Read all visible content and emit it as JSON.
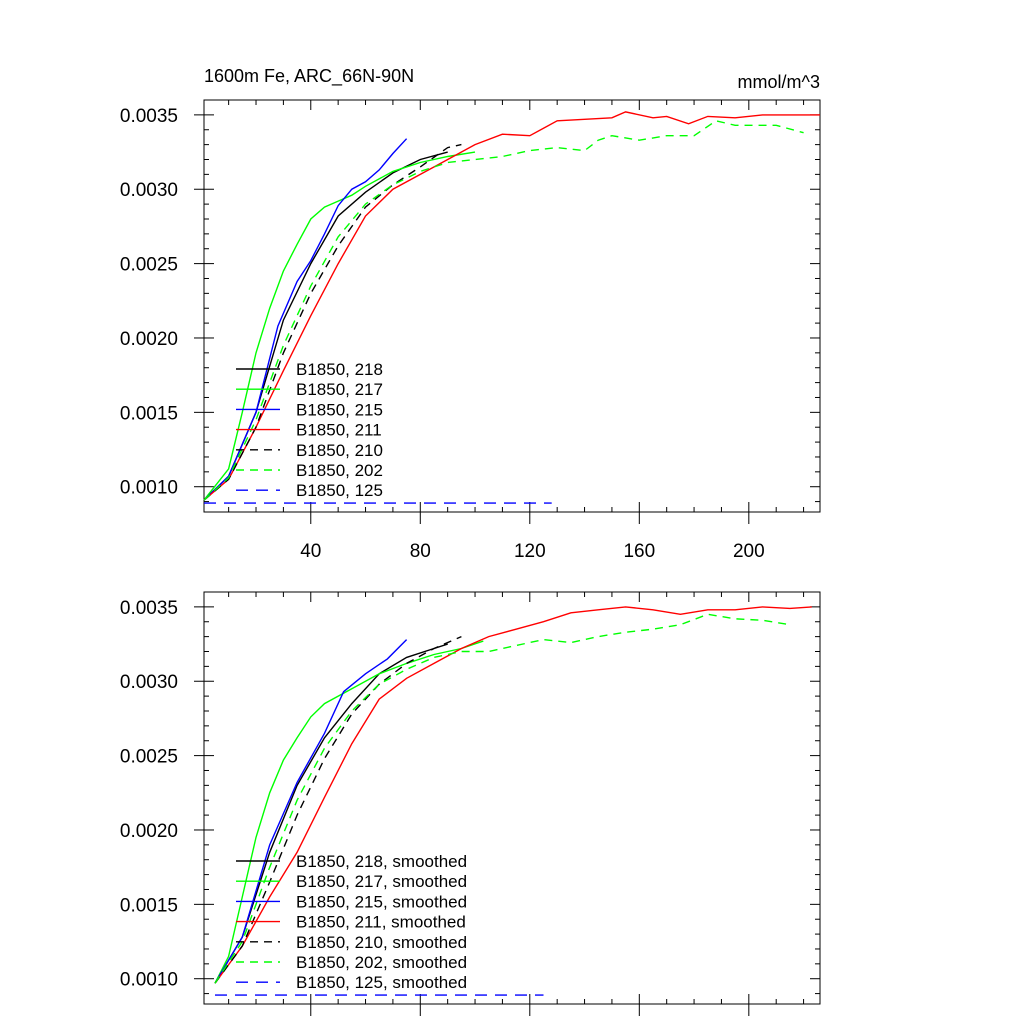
{
  "figure": {
    "title_left": "1600m Fe, ARC_66N-90N",
    "title_right": "mmol/m^3"
  },
  "chart_data": [
    {
      "type": "line",
      "xlim": [
        1,
        226
      ],
      "ylim": [
        0.00083,
        0.0036
      ],
      "x_ticks": [
        40,
        80,
        120,
        160,
        200
      ],
      "x_tick_labels": [
        "40",
        "80",
        "120",
        "160",
        "200"
      ],
      "y_ticks": [
        0.001,
        0.0015,
        0.002,
        0.0025,
        0.003,
        0.0035
      ],
      "y_tick_labels": [
        "0.0010",
        "0.0015",
        "0.0020",
        "0.0025",
        "0.0030",
        "0.0035"
      ],
      "grid": false,
      "legend_position": "lower-left",
      "series": [
        {
          "name": "B1850, 218",
          "color": "#000000",
          "dash": "solid",
          "points": [
            [
              1,
              0.00091
            ],
            [
              10,
              0.00107
            ],
            [
              20,
              0.0015
            ],
            [
              30,
              0.00212
            ],
            [
              40,
              0.0025
            ],
            [
              50,
              0.00282
            ],
            [
              60,
              0.00298
            ],
            [
              70,
              0.00311
            ],
            [
              80,
              0.0032
            ],
            [
              90,
              0.00325
            ]
          ]
        },
        {
          "name": "B1850, 217",
          "color": "#00ff00",
          "dash": "solid",
          "points": [
            [
              1,
              0.00091
            ],
            [
              10,
              0.00112
            ],
            [
              15,
              0.0015
            ],
            [
              20,
              0.0019
            ],
            [
              25,
              0.0022
            ],
            [
              30,
              0.00245
            ],
            [
              35,
              0.00263
            ],
            [
              40,
              0.0028
            ],
            [
              45,
              0.00288
            ],
            [
              50,
              0.00292
            ],
            [
              55,
              0.00296
            ],
            [
              60,
              0.00302
            ],
            [
              70,
              0.00312
            ],
            [
              80,
              0.00318
            ],
            [
              90,
              0.00322
            ],
            [
              100,
              0.00325
            ]
          ]
        },
        {
          "name": "B1850, 215",
          "color": "#0000ff",
          "dash": "solid",
          "points": [
            [
              1,
              0.00091
            ],
            [
              10,
              0.00107
            ],
            [
              20,
              0.0015
            ],
            [
              28,
              0.00208
            ],
            [
              35,
              0.00238
            ],
            [
              40,
              0.00252
            ],
            [
              45,
              0.0027
            ],
            [
              50,
              0.00289
            ],
            [
              55,
              0.003
            ],
            [
              60,
              0.00305
            ],
            [
              65,
              0.00313
            ],
            [
              70,
              0.00324
            ],
            [
              75,
              0.00334
            ]
          ]
        },
        {
          "name": "B1850, 211",
          "color": "#ff0000",
          "dash": "solid",
          "points": [
            [
              1,
              0.00091
            ],
            [
              10,
              0.00105
            ],
            [
              20,
              0.0014
            ],
            [
              30,
              0.00178
            ],
            [
              40,
              0.00215
            ],
            [
              50,
              0.0025
            ],
            [
              60,
              0.00282
            ],
            [
              70,
              0.003
            ],
            [
              80,
              0.0031
            ],
            [
              90,
              0.0032
            ],
            [
              100,
              0.0033
            ],
            [
              110,
              0.00337
            ],
            [
              120,
              0.00336
            ],
            [
              130,
              0.00346
            ],
            [
              140,
              0.00347
            ],
            [
              150,
              0.00348
            ],
            [
              155,
              0.00352
            ],
            [
              165,
              0.00348
            ],
            [
              170,
              0.00349
            ],
            [
              178,
              0.00344
            ],
            [
              185,
              0.00349
            ],
            [
              195,
              0.00348
            ],
            [
              205,
              0.0035
            ],
            [
              215,
              0.0035
            ],
            [
              226,
              0.0035
            ]
          ]
        },
        {
          "name": "B1850, 210",
          "color": "#000000",
          "dash": "dashed",
          "points": [
            [
              1,
              0.00091
            ],
            [
              10,
              0.00105
            ],
            [
              20,
              0.0014
            ],
            [
              30,
              0.0019
            ],
            [
              40,
              0.0023
            ],
            [
              50,
              0.00262
            ],
            [
              60,
              0.00288
            ],
            [
              70,
              0.00303
            ],
            [
              80,
              0.00315
            ],
            [
              90,
              0.00328
            ],
            [
              95,
              0.0033
            ]
          ]
        },
        {
          "name": "B1850, 202",
          "color": "#00ff00",
          "dash": "dashed",
          "points": [
            [
              1,
              0.00091
            ],
            [
              10,
              0.00106
            ],
            [
              20,
              0.00145
            ],
            [
              30,
              0.00195
            ],
            [
              40,
              0.00235
            ],
            [
              50,
              0.00268
            ],
            [
              60,
              0.0029
            ],
            [
              70,
              0.00303
            ],
            [
              80,
              0.00312
            ],
            [
              90,
              0.00318
            ],
            [
              100,
              0.0032
            ],
            [
              110,
              0.00322
            ],
            [
              120,
              0.00326
            ],
            [
              130,
              0.00328
            ],
            [
              140,
              0.00326
            ],
            [
              145,
              0.00333
            ],
            [
              150,
              0.00336
            ],
            [
              160,
              0.00333
            ],
            [
              170,
              0.00336
            ],
            [
              180,
              0.00336
            ],
            [
              188,
              0.00346
            ],
            [
              195,
              0.00343
            ],
            [
              210,
              0.00343
            ],
            [
              220,
              0.00338
            ]
          ]
        },
        {
          "name": "B1850, 125",
          "color": "#0000ff",
          "dash": "longdash",
          "points": [
            [
              1,
              0.00089
            ],
            [
              128,
              0.00089
            ]
          ]
        }
      ]
    },
    {
      "type": "line",
      "xlim": [
        1,
        226
      ],
      "ylim": [
        0.00083,
        0.0036
      ],
      "x_ticks": [
        40,
        80,
        120,
        160,
        200
      ],
      "x_tick_labels": [],
      "y_ticks": [
        0.001,
        0.0015,
        0.002,
        0.0025,
        0.003,
        0.0035
      ],
      "y_tick_labels": [
        "0.0010",
        "0.0015",
        "0.0020",
        "0.0025",
        "0.0030",
        "0.0035"
      ],
      "grid": false,
      "legend_position": "lower-left",
      "series": [
        {
          "name": "B1850, 218, smoothed",
          "color": "#000000",
          "dash": "solid",
          "points": [
            [
              5,
              0.00097
            ],
            [
              15,
              0.00128
            ],
            [
              25,
              0.00185
            ],
            [
              35,
              0.0023
            ],
            [
              45,
              0.00262
            ],
            [
              55,
              0.00285
            ],
            [
              65,
              0.00305
            ],
            [
              75,
              0.00316
            ],
            [
              85,
              0.00322
            ],
            [
              90,
              0.00325
            ]
          ]
        },
        {
          "name": "B1850, 217, smoothed",
          "color": "#00ff00",
          "dash": "solid",
          "points": [
            [
              5,
              0.00097
            ],
            [
              10,
              0.00115
            ],
            [
              15,
              0.00155
            ],
            [
              20,
              0.00195
            ],
            [
              25,
              0.00225
            ],
            [
              30,
              0.00247
            ],
            [
              35,
              0.00262
            ],
            [
              40,
              0.00276
            ],
            [
              45,
              0.00285
            ],
            [
              55,
              0.00295
            ],
            [
              65,
              0.00305
            ],
            [
              75,
              0.00312
            ],
            [
              85,
              0.00318
            ],
            [
              95,
              0.00322
            ],
            [
              103,
              0.00327
            ]
          ]
        },
        {
          "name": "B1850, 215, smoothed",
          "color": "#0000ff",
          "dash": "solid",
          "points": [
            [
              5,
              0.00097
            ],
            [
              15,
              0.00128
            ],
            [
              25,
              0.0019
            ],
            [
              35,
              0.00232
            ],
            [
              45,
              0.00265
            ],
            [
              52,
              0.00293
            ],
            [
              60,
              0.00305
            ],
            [
              68,
              0.00315
            ],
            [
              75,
              0.00328
            ]
          ]
        },
        {
          "name": "B1850, 211, smoothed",
          "color": "#ff0000",
          "dash": "solid",
          "points": [
            [
              5,
              0.00097
            ],
            [
              15,
              0.00122
            ],
            [
              25,
              0.00155
            ],
            [
              35,
              0.00185
            ],
            [
              45,
              0.00222
            ],
            [
              55,
              0.00258
            ],
            [
              65,
              0.00288
            ],
            [
              75,
              0.00302
            ],
            [
              85,
              0.00312
            ],
            [
              95,
              0.00322
            ],
            [
              105,
              0.0033
            ],
            [
              115,
              0.00335
            ],
            [
              125,
              0.0034
            ],
            [
              135,
              0.00346
            ],
            [
              145,
              0.00348
            ],
            [
              155,
              0.0035
            ],
            [
              165,
              0.00348
            ],
            [
              175,
              0.00345
            ],
            [
              185,
              0.00348
            ],
            [
              195,
              0.00348
            ],
            [
              205,
              0.0035
            ],
            [
              215,
              0.00349
            ],
            [
              223,
              0.0035
            ]
          ]
        },
        {
          "name": "B1850, 210, smoothed",
          "color": "#000000",
          "dash": "dashed",
          "points": [
            [
              5,
              0.00097
            ],
            [
              15,
              0.00122
            ],
            [
              25,
              0.00165
            ],
            [
              35,
              0.0021
            ],
            [
              45,
              0.00248
            ],
            [
              55,
              0.00278
            ],
            [
              65,
              0.00298
            ],
            [
              75,
              0.00312
            ],
            [
              85,
              0.00322
            ],
            [
              95,
              0.0033
            ]
          ]
        },
        {
          "name": "B1850, 202, smoothed",
          "color": "#00ff00",
          "dash": "dashed",
          "points": [
            [
              5,
              0.00097
            ],
            [
              15,
              0.00125
            ],
            [
              25,
              0.00175
            ],
            [
              35,
              0.0022
            ],
            [
              45,
              0.00255
            ],
            [
              55,
              0.0028
            ],
            [
              65,
              0.00298
            ],
            [
              75,
              0.00308
            ],
            [
              85,
              0.00316
            ],
            [
              95,
              0.0032
            ],
            [
              105,
              0.0032
            ],
            [
              115,
              0.00324
            ],
            [
              125,
              0.00328
            ],
            [
              135,
              0.00326
            ],
            [
              145,
              0.0033
            ],
            [
              155,
              0.00333
            ],
            [
              165,
              0.00335
            ],
            [
              175,
              0.00338
            ],
            [
              185,
              0.00345
            ],
            [
              195,
              0.00342
            ],
            [
              205,
              0.00341
            ],
            [
              215,
              0.00338
            ]
          ]
        },
        {
          "name": "B1850, 125, smoothed",
          "color": "#0000ff",
          "dash": "longdash",
          "points": [
            [
              5,
              0.00089
            ],
            [
              125,
              0.00089
            ]
          ]
        }
      ]
    }
  ]
}
